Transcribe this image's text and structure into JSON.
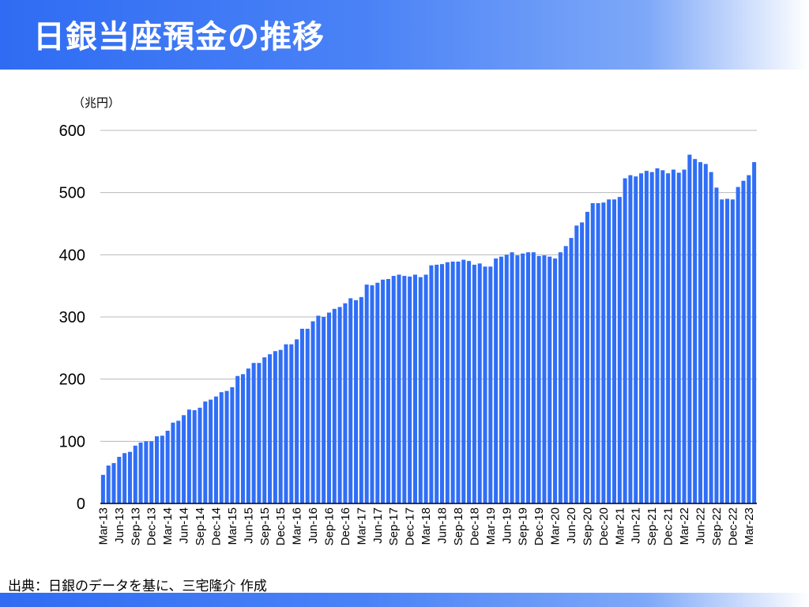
{
  "header": {
    "title": "日銀当座預金の推移"
  },
  "footer": {
    "source": "出典：日銀のデータを基に、三宅隆介 作成"
  },
  "colors": {
    "bar": "#306ef6",
    "header_gradient_start": "#2f6cf3",
    "grid": "#b8b8b8"
  },
  "chart_data": {
    "type": "bar",
    "title": "日銀当座預金の推移",
    "unit_label": "（兆円）",
    "ylim": [
      0,
      600
    ],
    "yticks": [
      0,
      100,
      200,
      300,
      400,
      500,
      600
    ],
    "grid": true,
    "xtick_every": 3,
    "categories": [
      "Mar-13",
      "Apr-13",
      "May-13",
      "Jun-13",
      "Jul-13",
      "Aug-13",
      "Sep-13",
      "Oct-13",
      "Nov-13",
      "Dec-13",
      "Jan-14",
      "Feb-14",
      "Mar-14",
      "Apr-14",
      "May-14",
      "Jun-14",
      "Jul-14",
      "Aug-14",
      "Sep-14",
      "Oct-14",
      "Nov-14",
      "Dec-14",
      "Jan-15",
      "Feb-15",
      "Mar-15",
      "Apr-15",
      "May-15",
      "Jun-15",
      "Jul-15",
      "Aug-15",
      "Sep-15",
      "Oct-15",
      "Nov-15",
      "Dec-15",
      "Jan-16",
      "Feb-16",
      "Mar-16",
      "Apr-16",
      "May-16",
      "Jun-16",
      "Jul-16",
      "Aug-16",
      "Sep-16",
      "Oct-16",
      "Nov-16",
      "Dec-16",
      "Jan-17",
      "Feb-17",
      "Mar-17",
      "Apr-17",
      "May-17",
      "Jun-17",
      "Jul-17",
      "Aug-17",
      "Sep-17",
      "Oct-17",
      "Nov-17",
      "Dec-17",
      "Jan-18",
      "Feb-18",
      "Mar-18",
      "Apr-18",
      "May-18",
      "Jun-18",
      "Jul-18",
      "Aug-18",
      "Sep-18",
      "Oct-18",
      "Nov-18",
      "Dec-18",
      "Jan-19",
      "Feb-19",
      "Mar-19",
      "Apr-19",
      "May-19",
      "Jun-19",
      "Jul-19",
      "Aug-19",
      "Sep-19",
      "Oct-19",
      "Nov-19",
      "Dec-19",
      "Jan-20",
      "Feb-20",
      "Mar-20",
      "Apr-20",
      "May-20",
      "Jun-20",
      "Jul-20",
      "Aug-20",
      "Sep-20",
      "Oct-20",
      "Nov-20",
      "Dec-20",
      "Jan-21",
      "Feb-21",
      "Mar-21",
      "Apr-21",
      "May-21",
      "Jun-21",
      "Jul-21",
      "Aug-21",
      "Sep-21",
      "Oct-21",
      "Nov-21",
      "Dec-21",
      "Jan-22",
      "Feb-22",
      "Mar-22",
      "Apr-22",
      "May-22",
      "Jun-22",
      "Jul-22",
      "Aug-22",
      "Sep-22",
      "Oct-22",
      "Nov-22",
      "Dec-22",
      "Jan-23",
      "Feb-23",
      "Mar-23",
      "Apr-23"
    ],
    "values": [
      46,
      61,
      65,
      75,
      81,
      83,
      93,
      98,
      100,
      100,
      108,
      109,
      117,
      130,
      133,
      142,
      151,
      150,
      154,
      164,
      167,
      172,
      179,
      181,
      187,
      205,
      208,
      217,
      226,
      226,
      235,
      240,
      245,
      247,
      256,
      256,
      264,
      281,
      281,
      293,
      302,
      300,
      307,
      313,
      316,
      322,
      330,
      327,
      332,
      352,
      351,
      355,
      360,
      361,
      366,
      368,
      366,
      365,
      368,
      364,
      368,
      383,
      384,
      385,
      388,
      389,
      389,
      392,
      390,
      384,
      386,
      381,
      381,
      394,
      397,
      400,
      404,
      399,
      402,
      404,
      404,
      398,
      399,
      397,
      394,
      404,
      414,
      427,
      447,
      452,
      469,
      483,
      483,
      484,
      489,
      489,
      493,
      523,
      528,
      526,
      531,
      535,
      533,
      539,
      536,
      531,
      537,
      532,
      537,
      561,
      554,
      549,
      546,
      533,
      508,
      489,
      490,
      489,
      509,
      519,
      528,
      549
    ]
  }
}
